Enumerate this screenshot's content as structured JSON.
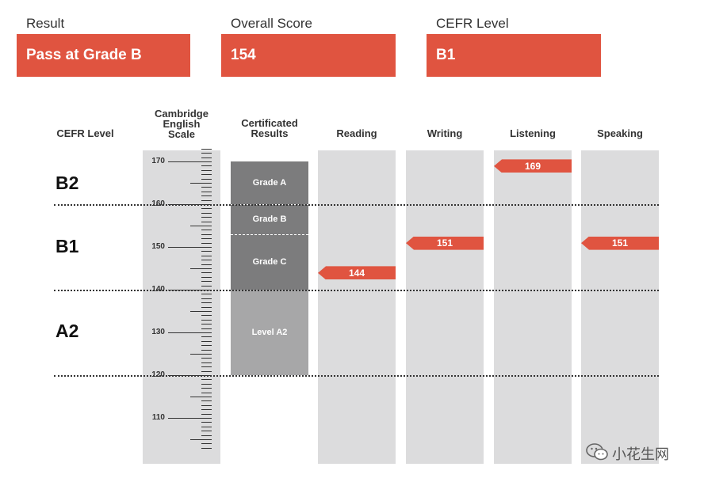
{
  "summary": {
    "result_label": "Result",
    "result_value": "Pass at Grade B",
    "score_label": "Overall Score",
    "score_value": "154",
    "cefr_label": "CEFR Level",
    "cefr_value": "B1"
  },
  "headers": {
    "cefr": "CEFR Level",
    "scale": [
      "Cambridge",
      "English",
      "Scale"
    ],
    "certificated": [
      "Certificated",
      "Results"
    ],
    "reading": "Reading",
    "writing": "Writing",
    "listening": "Listening",
    "speaking": "Speaking"
  },
  "cefr_bands": [
    "B2",
    "B1",
    "A2"
  ],
  "watermark": "小花生网",
  "colors": {
    "accent": "#e05440",
    "column_bg": "#dcdcdd",
    "grade_block": "#7c7c7d",
    "level_block": "#a7a7a8"
  },
  "chart_data": {
    "type": "bar",
    "y_axis": {
      "min": 103,
      "max": 173,
      "labeled_ticks": [
        110,
        120,
        130,
        140,
        150,
        160,
        170
      ]
    },
    "cefr_thresholds": [
      120,
      140,
      160
    ],
    "certificated_results": [
      {
        "label": "Grade A",
        "from": 160,
        "to": 170
      },
      {
        "label": "Grade B",
        "from": 153,
        "to": 160
      },
      {
        "label": "Grade C",
        "from": 140,
        "to": 153
      },
      {
        "label": "Level A2",
        "from": 120,
        "to": 140
      }
    ],
    "categories": [
      "Reading",
      "Writing",
      "Listening",
      "Speaking"
    ],
    "values": [
      144,
      151,
      169,
      151
    ]
  }
}
